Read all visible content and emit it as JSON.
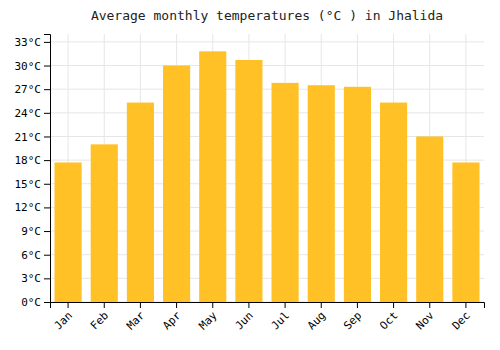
{
  "chart_data": {
    "type": "bar",
    "title": "Average monthly temperatures (°C ) in Jhalida",
    "categories": [
      "Jan",
      "Feb",
      "Mar",
      "Apr",
      "May",
      "Jun",
      "Jul",
      "Aug",
      "Sep",
      "Oct",
      "Nov",
      "Dec"
    ],
    "values": [
      17.7,
      20.0,
      25.3,
      30.0,
      31.8,
      30.7,
      27.8,
      27.5,
      27.3,
      25.3,
      21.0,
      17.7
    ],
    "color": "#FFC125",
    "ylim": [
      0,
      34
    ],
    "yticks": [
      {
        "value": 0,
        "label": "0°C"
      },
      {
        "value": 3,
        "label": "3°C"
      },
      {
        "value": 6,
        "label": "6°C"
      },
      {
        "value": 9,
        "label": "9°C"
      },
      {
        "value": 12,
        "label": "12°C"
      },
      {
        "value": 15,
        "label": "15°C"
      },
      {
        "value": 18,
        "label": "18°C"
      },
      {
        "value": 21,
        "label": "21°C"
      },
      {
        "value": 24,
        "label": "24°C"
      },
      {
        "value": 27,
        "label": "27°C"
      },
      {
        "value": 30,
        "label": "30°C"
      },
      {
        "value": 33,
        "label": "33°C"
      }
    ],
    "grid": true
  }
}
